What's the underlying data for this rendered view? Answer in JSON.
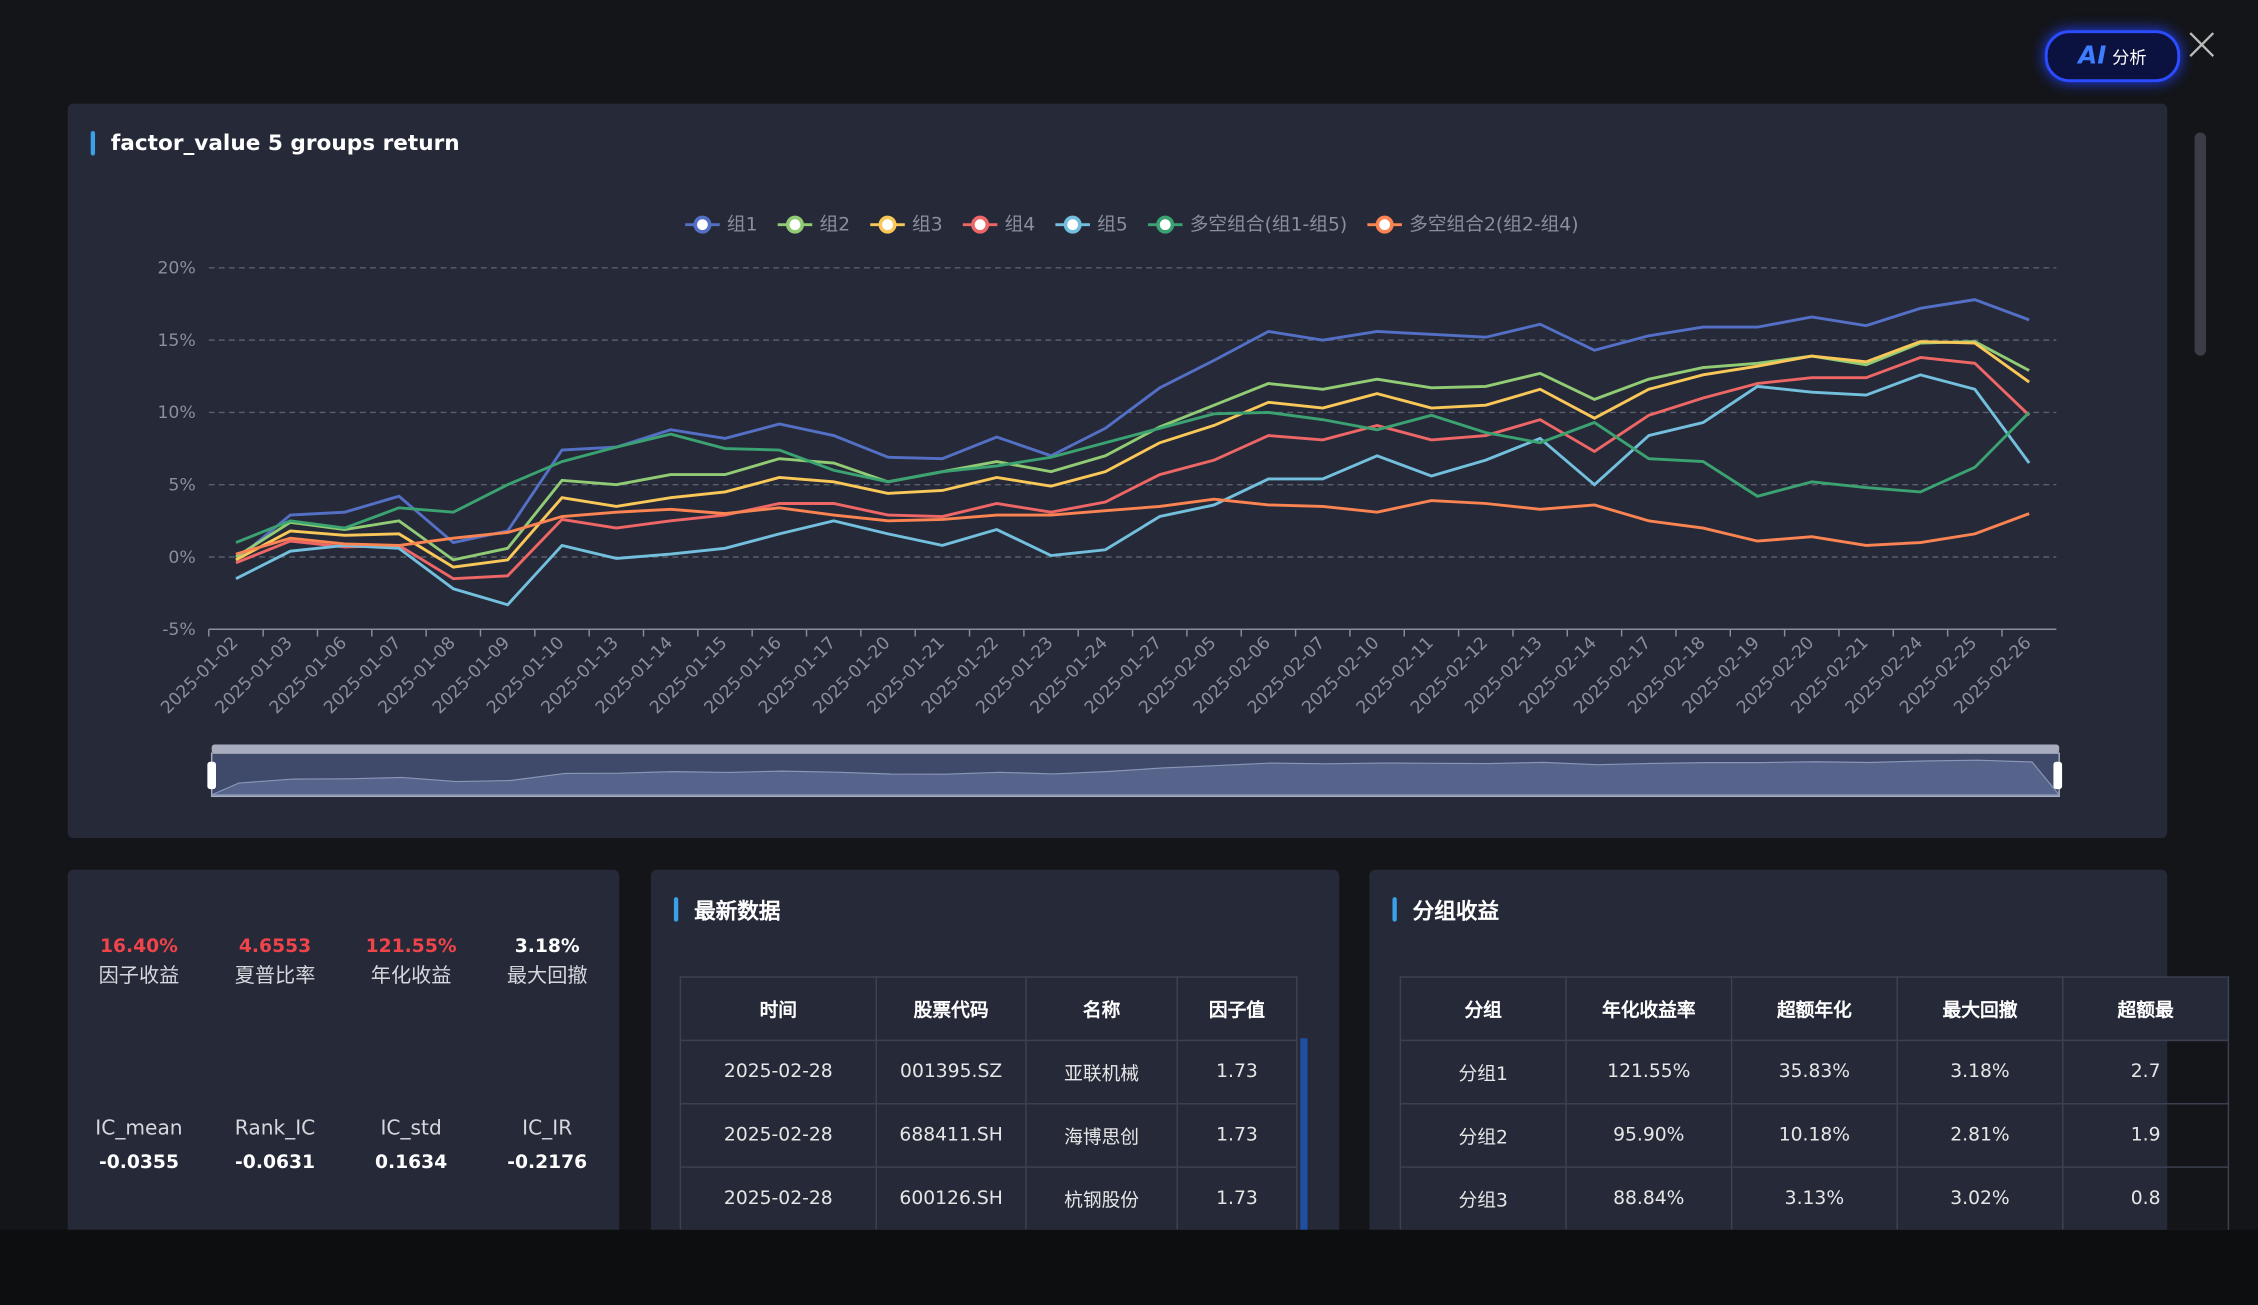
{
  "header": {
    "ai_badge": "AI",
    "ai_button": "分析"
  },
  "chart_data": {
    "type": "line",
    "title": "factor_value 5 groups return",
    "x": [
      "2025-01-02",
      "2025-01-03",
      "2025-01-06",
      "2025-01-07",
      "2025-01-08",
      "2025-01-09",
      "2025-01-10",
      "2025-01-13",
      "2025-01-14",
      "2025-01-15",
      "2025-01-16",
      "2025-01-17",
      "2025-01-20",
      "2025-01-21",
      "2025-01-22",
      "2025-01-23",
      "2025-01-24",
      "2025-01-27",
      "2025-02-05",
      "2025-02-06",
      "2025-02-07",
      "2025-02-10",
      "2025-02-11",
      "2025-02-12",
      "2025-02-13",
      "2025-02-14",
      "2025-02-17",
      "2025-02-18",
      "2025-02-19",
      "2025-02-20",
      "2025-02-21",
      "2025-02-24",
      "2025-02-25",
      "2025-02-26"
    ],
    "ylim": [
      -5,
      20
    ],
    "yticks": [
      {
        "value": -5,
        "label": "-5%"
      },
      {
        "value": 0,
        "label": "0%"
      },
      {
        "value": 5,
        "label": "5%"
      },
      {
        "value": 10,
        "label": "10%"
      },
      {
        "value": 15,
        "label": "15%"
      },
      {
        "value": 20,
        "label": "20%"
      }
    ],
    "grid": true,
    "legend": "top",
    "series": [
      {
        "name": "组1",
        "color": "#5470c6",
        "values": [
          -0.2,
          2.9,
          3.1,
          4.2,
          1.0,
          1.8,
          7.4,
          7.6,
          8.8,
          8.2,
          9.2,
          8.4,
          6.9,
          6.8,
          8.3,
          7.0,
          8.9,
          11.7,
          13.6,
          15.6,
          15.0,
          15.6,
          15.4,
          15.2,
          16.1,
          14.3,
          15.3,
          15.9,
          15.9,
          16.6,
          16.0,
          17.2,
          17.8,
          16.4
        ]
      },
      {
        "name": "组2",
        "color": "#91cc75",
        "values": [
          0.0,
          2.4,
          1.9,
          2.5,
          -0.2,
          0.6,
          5.3,
          5.0,
          5.7,
          5.7,
          6.8,
          6.5,
          5.2,
          5.9,
          6.6,
          5.9,
          7.0,
          9.0,
          10.5,
          12.0,
          11.6,
          12.3,
          11.7,
          11.8,
          12.7,
          10.9,
          12.3,
          13.1,
          13.4,
          13.9,
          13.3,
          14.8,
          14.9,
          12.9
        ]
      },
      {
        "name": "组3",
        "color": "#fac858",
        "values": [
          -0.2,
          1.8,
          1.5,
          1.6,
          -0.7,
          -0.2,
          4.1,
          3.5,
          4.1,
          4.5,
          5.5,
          5.2,
          4.4,
          4.6,
          5.5,
          4.9,
          5.9,
          7.9,
          9.1,
          10.7,
          10.3,
          11.3,
          10.3,
          10.5,
          11.6,
          9.6,
          11.6,
          12.6,
          13.2,
          13.9,
          13.5,
          14.9,
          14.8,
          12.1
        ]
      },
      {
        "name": "组4",
        "color": "#ee6666",
        "values": [
          -0.4,
          1.1,
          0.7,
          0.8,
          -1.5,
          -1.3,
          2.6,
          2.0,
          2.5,
          2.9,
          3.7,
          3.7,
          2.9,
          2.8,
          3.7,
          3.1,
          3.8,
          5.7,
          6.7,
          8.4,
          8.1,
          9.1,
          8.1,
          8.4,
          9.5,
          7.3,
          9.8,
          11.0,
          12.0,
          12.4,
          12.4,
          13.8,
          13.4,
          9.8
        ]
      },
      {
        "name": "组5",
        "color": "#73c0de",
        "values": [
          -1.5,
          0.4,
          0.8,
          0.6,
          -2.2,
          -3.3,
          0.8,
          -0.1,
          0.2,
          0.6,
          1.6,
          2.5,
          1.6,
          0.8,
          1.9,
          0.1,
          0.5,
          2.8,
          3.6,
          5.4,
          5.4,
          7.0,
          5.6,
          6.7,
          8.2,
          5.0,
          8.4,
          9.3,
          11.8,
          11.4,
          11.2,
          12.6,
          11.6,
          6.5
        ]
      },
      {
        "name": "多空组合(组1-组5)",
        "color": "#3ba272",
        "values": [
          1.0,
          2.5,
          2.0,
          3.4,
          3.1,
          5.0,
          6.6,
          7.6,
          8.5,
          7.5,
          7.4,
          6.0,
          5.2,
          5.9,
          6.3,
          6.9,
          7.9,
          8.9,
          9.9,
          10.0,
          9.5,
          8.8,
          9.8,
          8.6,
          7.9,
          9.3,
          6.8,
          6.6,
          4.2,
          5.2,
          4.8,
          4.5,
          6.2,
          10.0
        ]
      },
      {
        "name": "多空组合2(组2-组4)",
        "color": "#fc8452",
        "values": [
          0.2,
          1.3,
          0.9,
          0.8,
          1.3,
          1.7,
          2.8,
          3.1,
          3.3,
          3.0,
          3.4,
          2.9,
          2.5,
          2.6,
          2.9,
          2.9,
          3.2,
          3.5,
          4.0,
          3.6,
          3.5,
          3.1,
          3.9,
          3.7,
          3.3,
          3.6,
          2.5,
          2.0,
          1.1,
          1.4,
          0.8,
          1.0,
          1.6,
          3.0
        ]
      }
    ]
  },
  "stats": [
    {
      "value": "16.40%",
      "label": "因子收益",
      "highlight": true
    },
    {
      "value": "4.6553",
      "label": "夏普比率",
      "highlight": true
    },
    {
      "value": "121.55%",
      "label": "年化收益",
      "highlight": true
    },
    {
      "value": "3.18%",
      "label": "最大回撤",
      "highlight": false
    }
  ],
  "ic_stats": [
    {
      "label": "IC_mean",
      "value": "-0.0355"
    },
    {
      "label": "Rank_IC",
      "value": "-0.0631"
    },
    {
      "label": "IC_std",
      "value": "0.1634"
    },
    {
      "label": "IC_IR",
      "value": "-0.2176"
    }
  ],
  "latest": {
    "title": "最新数据",
    "headers": [
      "时间",
      "股票代码",
      "名称",
      "因子值"
    ],
    "rows": [
      [
        "2025-02-28",
        "001395.SZ",
        "亚联机械",
        "1.73"
      ],
      [
        "2025-02-28",
        "688411.SH",
        "海博思创",
        "1.73"
      ],
      [
        "2025-02-28",
        "600126.SH",
        "杭钢股份",
        "1.73"
      ]
    ]
  },
  "groups": {
    "title": "分组收益",
    "headers": [
      "分组",
      "年化收益率",
      "超额年化",
      "最大回撤",
      "超额最"
    ],
    "rows": [
      [
        "分组1",
        "121.55%",
        "35.83%",
        "3.18%",
        "2.7"
      ],
      [
        "分组2",
        "95.90%",
        "10.18%",
        "2.81%",
        "1.9"
      ],
      [
        "分组3",
        "88.84%",
        "3.13%",
        "3.02%",
        "0.8"
      ]
    ]
  }
}
